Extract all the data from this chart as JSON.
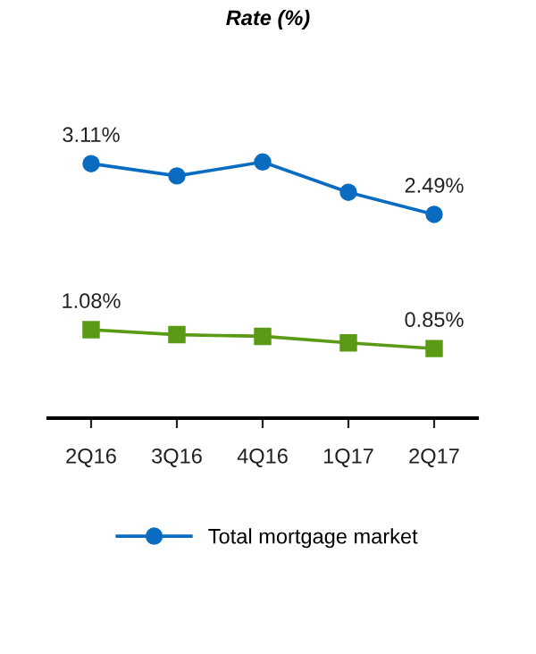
{
  "chart_data": {
    "type": "line",
    "title": "Rate (%)",
    "categories": [
      "2Q16",
      "3Q16",
      "4Q16",
      "1Q17",
      "2Q17"
    ],
    "series": [
      {
        "name": "Total mortgage market",
        "color": "#0a6cc0",
        "marker": "circle",
        "values": [
          3.11,
          2.96,
          3.13,
          2.76,
          2.49
        ],
        "value_labels": [
          "3.11%",
          null,
          null,
          null,
          "2.49%"
        ]
      },
      {
        "color": "#5a9a14",
        "marker": "square",
        "values": [
          1.08,
          1.02,
          1.0,
          0.92,
          0.85
        ],
        "value_labels": [
          "1.08%",
          null,
          null,
          null,
          "0.85%"
        ]
      }
    ],
    "tick_labels": "x",
    "grid": false,
    "legend": "bottom",
    "line_style": "solid"
  }
}
